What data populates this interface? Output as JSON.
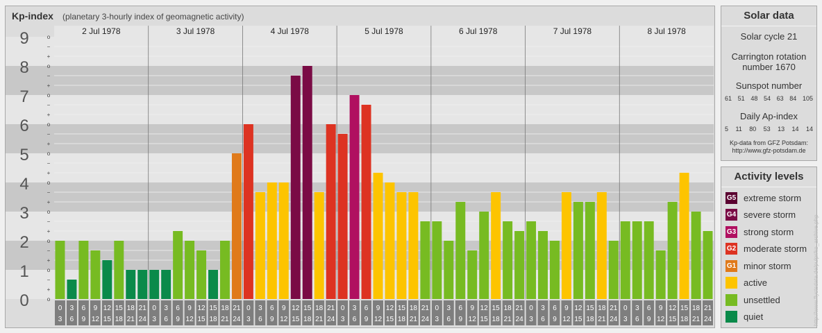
{
  "header": {
    "title": "Kp-index",
    "subtitle": "(planetary 3-hourly index of geomagnetic activity)"
  },
  "chart_data": {
    "type": "bar",
    "title": "Kp-index",
    "subtitle": "(planetary 3-hourly index of geomagnetic activity)",
    "ylim": [
      0,
      9
    ],
    "y_ticks": [
      "0",
      "1",
      "2",
      "3",
      "4",
      "5",
      "6",
      "7",
      "8",
      "9"
    ],
    "minor_tick_marks": [
      "o",
      "+",
      "−"
    ],
    "days": [
      "2 Jul 1978",
      "3 Jul 1978",
      "4 Jul 1978",
      "5 Jul 1978",
      "6 Jul 1978",
      "7 Jul 1978",
      "8 Jul 1978"
    ],
    "intervals": [
      [
        "0",
        "3"
      ],
      [
        "3",
        "6"
      ],
      [
        "6",
        "9"
      ],
      [
        "9",
        "12"
      ],
      [
        "12",
        "15"
      ],
      [
        "15",
        "18"
      ],
      [
        "18",
        "21"
      ],
      [
        "21",
        "24"
      ]
    ],
    "values": [
      2.0,
      0.667,
      2.0,
      1.667,
      1.333,
      2.0,
      1.0,
      1.0,
      1.0,
      1.0,
      2.333,
      2.0,
      1.667,
      1.0,
      2.0,
      5.0,
      6.0,
      3.667,
      4.0,
      4.0,
      7.667,
      8.0,
      3.667,
      6.0,
      5.667,
      7.0,
      6.667,
      4.333,
      4.0,
      3.667,
      3.667,
      2.667,
      2.667,
      2.0,
      3.333,
      1.667,
      3.0,
      3.667,
      2.667,
      2.333,
      2.667,
      2.333,
      2.0,
      3.667,
      3.333,
      3.333,
      3.667,
      2.0,
      2.667,
      2.667,
      2.667,
      1.667,
      3.333,
      4.333,
      3.0,
      2.333
    ],
    "colors": {
      "quiet": "#0a8a4a",
      "unsettled": "#77bb22",
      "active": "#fdc400",
      "G1": "#e07a1a",
      "G2": "#dd3322",
      "G3": "#b01060",
      "G4": "#7a0b45",
      "G5": "#5a0030"
    },
    "grid": true
  },
  "solar": {
    "title": "Solar data",
    "cycle": "Solar cycle 21",
    "carrington_line1": "Carrington rotation",
    "carrington_line2": "number 1670",
    "sunspot_label": "Sunspot number",
    "sunspot_values": [
      "61",
      "51",
      "48",
      "54",
      "63",
      "84",
      "105"
    ],
    "ap_label": "Daily Ap-index",
    "ap_values": [
      "5",
      "11",
      "80",
      "53",
      "13",
      "14",
      "14"
    ],
    "source_line1": "Kp-data from GFZ Potsdam:",
    "source_line2": "http://www.gfz-potsdam.de"
  },
  "legend": {
    "title": "Activity levels",
    "items": [
      {
        "badge": "G5",
        "label": "extreme storm",
        "color": "#5a0030"
      },
      {
        "badge": "G4",
        "label": "severe storm",
        "color": "#7a0b45"
      },
      {
        "badge": "G3",
        "label": "strong storm",
        "color": "#b01060"
      },
      {
        "badge": "G2",
        "label": "moderate storm",
        "color": "#dd3322"
      },
      {
        "badge": "G1",
        "label": "minor storm",
        "color": "#e07a1a"
      },
      {
        "badge": "",
        "label": "active",
        "color": "#fdc400"
      },
      {
        "badge": "",
        "label": "unsettled",
        "color": "#77bb22"
      },
      {
        "badge": "",
        "label": "quiet",
        "color": "#0a8a4a"
      }
    ]
  },
  "watermark": "http://www.flyctsdata.de/pulpr/ko_archive.php"
}
